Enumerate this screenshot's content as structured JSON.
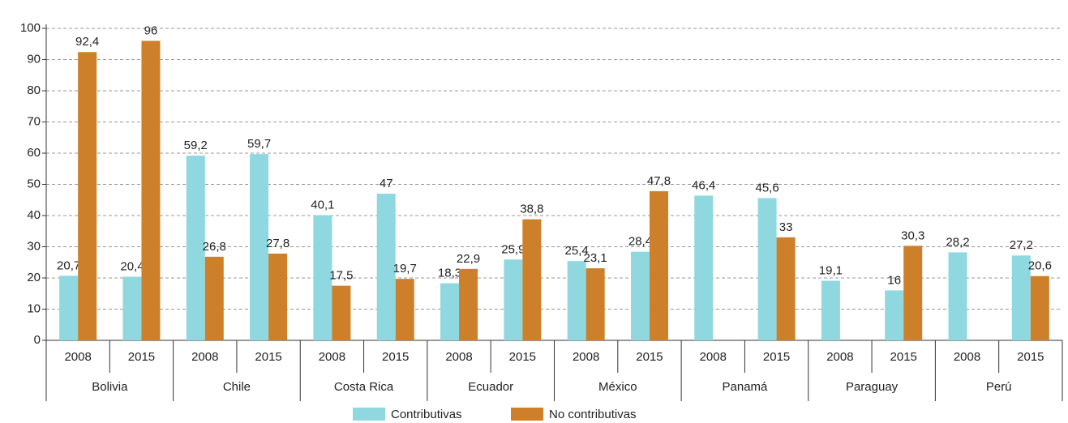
{
  "chart_data": {
    "type": "bar",
    "categories": [
      "2008",
      "2015",
      "2008",
      "2015",
      "2008",
      "2015",
      "2008",
      "2015",
      "2008",
      "2015",
      "2008",
      "2015",
      "2008",
      "2015",
      "2008",
      "2015"
    ],
    "groups": [
      "Bolivia",
      "Chile",
      "Costa Rica",
      "Ecuador",
      "México",
      "Panamá",
      "Paraguay",
      "Perú"
    ],
    "series": [
      {
        "name": "Contributivas",
        "color": "#8fd8e0",
        "values": [
          20.7,
          20.4,
          59.2,
          59.7,
          40.1,
          47,
          18.3,
          25.9,
          25.4,
          28.4,
          46.4,
          45.6,
          19.1,
          16,
          28.2,
          27.2
        ],
        "value_labels": [
          "20,7",
          "20,4",
          "59,2",
          "59,7",
          "40,1",
          "47",
          "18,3",
          "25,9",
          "25,4",
          "28,4",
          "46,4",
          "45,6",
          "19,1",
          "16",
          "28,2",
          "27,2"
        ]
      },
      {
        "name": "No contributivas",
        "color": "#cd7f2a",
        "values": [
          92.4,
          96,
          26.8,
          27.8,
          17.5,
          19.7,
          22.9,
          38.8,
          23.1,
          47.8,
          null,
          33,
          null,
          30.3,
          null,
          20.6
        ],
        "value_labels": [
          "92,4",
          "96",
          "26,8",
          "27,8",
          "17,5",
          "19,7",
          "22,9",
          "38,8",
          "23,1",
          "47,8",
          null,
          "33",
          null,
          "30,3",
          null,
          "20,6"
        ]
      }
    ],
    "ylim": [
      0,
      100
    ],
    "yticks": [
      0,
      10,
      20,
      30,
      40,
      50,
      60,
      70,
      80,
      90,
      100
    ],
    "grid": true
  }
}
